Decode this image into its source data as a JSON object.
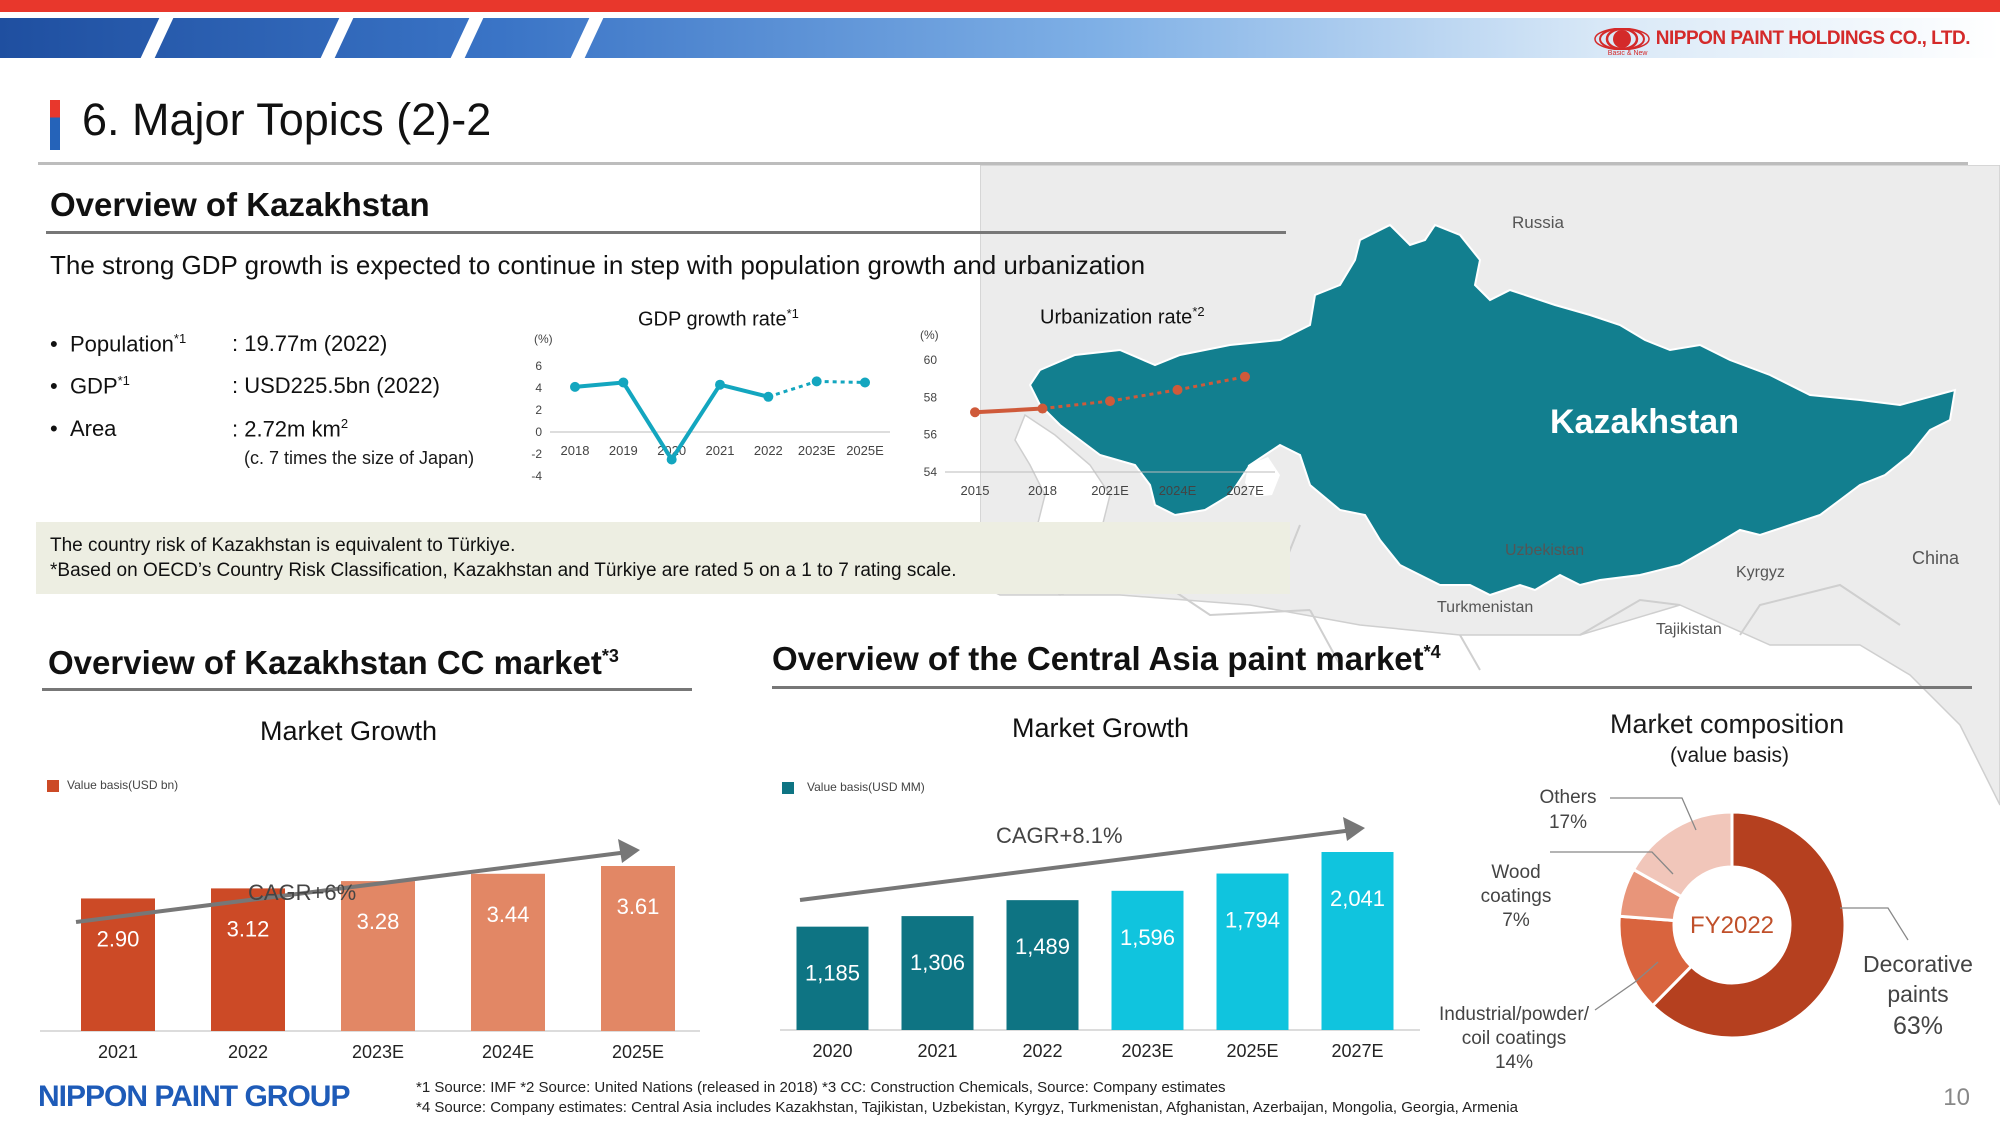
{
  "company": "NIPPON PAINT HOLDINGS CO., LTD.",
  "company_tagline": "Basic & New",
  "page_title": "6. Major Topics (2)-2",
  "overview": {
    "title": "Overview of Kazakhstan",
    "lead": "The strong GDP growth is expected to continue in step with population growth and urbanization",
    "facts": [
      {
        "label": "Population",
        "note": "*1",
        "value": ": 19.77m (2022)"
      },
      {
        "label": "GDP",
        "note": "*1",
        "value": ": USD225.5bn (2022)"
      },
      {
        "label": "Area",
        "note": "",
        "value": ": 2.72m km",
        "value_sup": "2",
        "sub": "(c. 7 times the size of Japan)"
      }
    ],
    "risk_lines": [
      "The country risk of Kazakhstan is equivalent to Türkiye.",
      "*Based on OECD’s Country Risk Classification, Kazakhstan and Türkiye are rated 5 on a 1 to 7 rating scale."
    ]
  },
  "map": {
    "labels": {
      "kazakhstan": "Kazakhstan",
      "russia": "Russia",
      "china": "China",
      "uzbekistan": "Uzbekistan",
      "kyrgyz": "Kyrgyz",
      "turkmenistan": "Turkmenistan",
      "tajikistan": "Tajikistan"
    },
    "colors": {
      "kazakhstan": "#127f8f",
      "neighbors": "#ececec",
      "borders": "#c8c8c8"
    }
  },
  "cc_market": {
    "title": "Overview of Kazakhstan CC market",
    "title_note": "*3",
    "subhead": "Market Growth",
    "legend": "Value basis(USD bn)",
    "cagr": "CAGR+6%"
  },
  "ca_market": {
    "title": "Overview of the Central Asia paint market",
    "title_note": "*4",
    "subhead": "Market Growth",
    "legend": "Value basis(USD MM)",
    "cagr": "CAGR+8.1%",
    "composition_title": "Market composition",
    "composition_sub": "(value basis)",
    "donut_center": "FY2022"
  },
  "chart_data": [
    {
      "type": "line",
      "title": "GDP growth rate",
      "title_note": "*1",
      "ylabel": "(%)",
      "categories": [
        "2018",
        "2019",
        "2020",
        "2021",
        "2022",
        "2023E",
        "2025E"
      ],
      "values": [
        4.1,
        4.5,
        -2.5,
        4.3,
        3.2,
        4.6,
        4.5
      ],
      "estimate_from_index": 5,
      "yticks": [
        6,
        4,
        2,
        0,
        -2,
        -4
      ],
      "ylim": [
        -4,
        6
      ],
      "color": "#13a6bf"
    },
    {
      "type": "line",
      "title": "Urbanization rate",
      "title_note": "*2",
      "ylabel": "(%)",
      "categories": [
        "2015",
        "2018",
        "2021E",
        "2024E",
        "2027E"
      ],
      "values": [
        57.2,
        57.4,
        57.8,
        58.4,
        59.1
      ],
      "estimate_from_index": 2,
      "yticks": [
        60,
        58,
        56,
        54
      ],
      "ylim": [
        54,
        60
      ],
      "color": "#cf5a3a"
    },
    {
      "type": "bar",
      "title": "Market Growth",
      "categories": [
        "2021",
        "2022",
        "2023E",
        "2024E",
        "2025E"
      ],
      "values": [
        2.9,
        3.12,
        3.28,
        3.44,
        3.61
      ],
      "labels": [
        "2.90",
        "3.12",
        "3.28",
        "3.44",
        "3.61"
      ],
      "colors": [
        "#cc4a26",
        "#cc4a26",
        "#e28765",
        "#e28765",
        "#e28765"
      ],
      "legend": "Value basis(USD bn)",
      "annotation": "CAGR+6%"
    },
    {
      "type": "bar",
      "title": "Market Growth",
      "categories": [
        "2020",
        "2021",
        "2022",
        "2023E",
        "2025E",
        "2027E"
      ],
      "values": [
        1185,
        1306,
        1489,
        1596,
        1794,
        2041
      ],
      "labels": [
        "1,185",
        "1,306",
        "1,489",
        "1,596",
        "1,794",
        "2,041"
      ],
      "colors": [
        "#0e7483",
        "#0e7483",
        "#0e7483",
        "#10c4de",
        "#10c4de",
        "#10c4de"
      ],
      "legend": "Value basis(USD MM)",
      "annotation": "CAGR+8.1%"
    },
    {
      "type": "pie",
      "title": "Market composition",
      "subtitle": "(value basis)",
      "center_label": "FY2022",
      "slices": [
        {
          "label": "Decorative paints",
          "value": 63,
          "text": "63%",
          "color": "#b5401f"
        },
        {
          "label": "Industrial/powder/ coil coatings",
          "value": 14,
          "text": "14%",
          "color": "#d9643e"
        },
        {
          "label": "Wood coatings",
          "value": 7,
          "text": "7%",
          "color": "#e8957a"
        },
        {
          "label": "Others",
          "value": 17,
          "text": "17%",
          "color": "#f1c6ba"
        }
      ]
    }
  ],
  "footer": {
    "logo": "NIPPON PAINT GROUP",
    "note1": "*1 Source: IMF    *2 Source: United Nations (released in 2018)    *3 CC: Construction Chemicals, Source: Company estimates",
    "note2": "*4 Source: Company estimates: Central Asia includes Kazakhstan, Tajikistan, Uzbekistan, Kyrgyz, Turkmenistan, Afghanistan, Azerbaijan, Mongolia, Georgia, Armenia",
    "page": "10"
  }
}
